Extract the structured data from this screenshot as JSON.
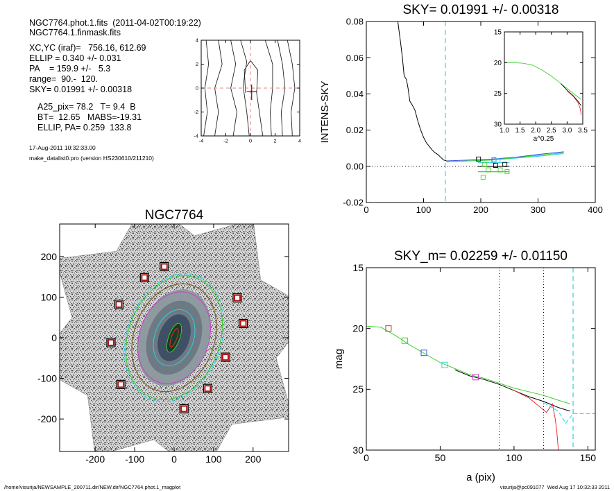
{
  "header": {
    "line1": "NGC7764.phot.1.fits  (2011-04-02T00:19:22)",
    "line2": "NGC7764.1.finmask.fits",
    "line3": "XC,YC (iraf)=   756.16, 612.69",
    "line4": "ELLIP = 0.340 +/- 0.031",
    "line5": "PA    = 159.9 +/-   5.3",
    "line6": "range=  90.-  120.",
    "line7": "SKY= 0.01991 +/- 0.00318",
    "line8": "A25_pix= 78.2   T= 9.4  B",
    "line9": "BT=  12.65   MABS=-19.31",
    "line10": "ELLIP, PA= 0.259  133.8",
    "date": "17-Aug-2011 10:32:33.00",
    "program": "make_datalist0.pro (version HS230610/211210)"
  },
  "footer": {
    "left": "/home/visurija/NEWSAMPLE_200711.dir/NEW.dir/NGC7764.phot.1_magplot",
    "right": "visurija@pc091077  Wed Aug 17 10:32:33 2011"
  },
  "colors": {
    "black": "#000000",
    "red": "#e8302e",
    "green": "#3fce2e",
    "blue": "#2f55d6",
    "cyan": "#29d3e6",
    "magenta": "#c83fc8",
    "pink": "#ee8080",
    "olive": "#786030"
  },
  "chart_data": [
    {
      "id": "contour",
      "type": "line",
      "title": "",
      "xlim": [
        -4,
        4
      ],
      "ylim": [
        -4,
        4
      ],
      "xticks": [
        "-4",
        "-2",
        "0",
        "2",
        "4"
      ],
      "yticks": [
        "-4",
        "-2",
        "0",
        "2",
        "4"
      ]
    },
    {
      "id": "sky",
      "type": "line",
      "title": "SKY= 0.01991 +/- 0.00318",
      "ylabel": "INTENS-SKY",
      "xlim": [
        0,
        400
      ],
      "ylim": [
        -0.02,
        0.08
      ],
      "xticks": [
        "0",
        "100",
        "200",
        "300",
        "400"
      ],
      "yticks": [
        "-0.02",
        "0.00",
        "0.02",
        "0.04",
        "0.06",
        "0.08"
      ],
      "cyan_marker_x": 138,
      "series": [
        {
          "color": "black",
          "x": [
            55,
            60,
            63,
            66,
            70,
            73,
            76,
            80,
            85,
            90,
            95,
            100,
            105,
            110,
            115,
            120,
            125,
            130,
            135,
            140
          ],
          "y": [
            0.08,
            0.068,
            0.06,
            0.05,
            0.048,
            0.043,
            0.036,
            0.034,
            0.031,
            0.025,
            0.02,
            0.016,
            0.013,
            0.011,
            0.009,
            0.0075,
            0.0065,
            0.005,
            0.0035,
            0.003
          ]
        },
        {
          "color": "cyan",
          "x": [
            140,
            180,
            220,
            260,
            300,
            345
          ],
          "y": [
            0.0025,
            0.003,
            0.0035,
            0.0045,
            0.0055,
            0.007
          ]
        },
        {
          "color": "blue",
          "x": [
            140,
            180,
            220,
            260,
            300,
            345
          ],
          "y": [
            0.003,
            0.0035,
            0.004,
            0.005,
            0.0065,
            0.008
          ]
        },
        {
          "color": "green",
          "x": [
            140,
            180,
            220,
            260,
            300,
            345
          ],
          "y": [
            0.0025,
            0.003,
            0.0035,
            0.0048,
            0.006,
            0.0075
          ]
        }
      ],
      "fit_lines": [
        {
          "color": "green",
          "x": [
            195,
            250
          ],
          "y": [
            -0.003,
            -0.003
          ]
        },
        {
          "color": "black",
          "x": [
            195,
            250
          ],
          "y": [
            0.0,
            0.0
          ]
        },
        {
          "color": "cyan",
          "x": [
            195,
            250
          ],
          "y": [
            0.002,
            0.002
          ]
        }
      ],
      "squares": [
        {
          "x": 196,
          "y": 0.004,
          "color": "black"
        },
        {
          "x": 204,
          "y": -0.006,
          "color": "green"
        },
        {
          "x": 207,
          "y": 0.001,
          "color": "green"
        },
        {
          "x": 213,
          "y": -0.002,
          "color": "green"
        },
        {
          "x": 223,
          "y": 0.0035,
          "color": "blue"
        },
        {
          "x": 226,
          "y": 0.0005,
          "color": "black"
        },
        {
          "x": 230,
          "y": 0.003,
          "color": "cyan"
        },
        {
          "x": 234,
          "y": -0.002,
          "color": "green"
        },
        {
          "x": 242,
          "y": 0.001,
          "color": "black"
        },
        {
          "x": 246,
          "y": -0.003,
          "color": "green"
        }
      ],
      "inset": {
        "xlim": [
          1.0,
          3.5
        ],
        "ylim": [
          15,
          30
        ],
        "xlabel": "a^0.25",
        "xticks": [
          "1.0",
          "1.5",
          "2.0",
          "2.5",
          "3.0",
          "3.5"
        ],
        "yticks": [
          "15",
          "20",
          "25",
          "30"
        ],
        "series": [
          {
            "color": "green",
            "x": [
              1.0,
              1.3,
              1.6,
              1.9,
              2.2,
              2.5,
              2.75,
              3.0,
              3.2,
              3.35,
              3.45
            ],
            "y": [
              20.0,
              20.0,
              20.1,
              20.4,
              21.2,
              22.2,
              23.2,
              24.2,
              25.0,
              25.6,
              26.0
            ]
          },
          {
            "color": "black",
            "x": [
              2.8,
              3.0,
              3.2,
              3.35,
              3.45
            ],
            "y": [
              23.4,
              24.5,
              25.4,
              26.3,
              27.0
            ]
          },
          {
            "color": "red",
            "x": [
              3.0,
              3.2,
              3.35,
              3.42,
              3.45
            ],
            "y": [
              24.6,
              25.5,
              26.5,
              27.5,
              28.5
            ]
          }
        ]
      }
    },
    {
      "id": "galaxy",
      "type": "scatter",
      "title": "NGC7764",
      "xlim": [
        -290,
        290
      ],
      "ylim": [
        -280,
        280
      ],
      "xticks": [
        "-200",
        "-100",
        "0",
        "100",
        "200"
      ],
      "yticks": [
        "-200",
        "-100",
        "0",
        "100",
        "200"
      ],
      "stars": [
        [
          -25,
          175
        ],
        [
          -75,
          148
        ],
        [
          -140,
          82
        ],
        [
          160,
          98
        ],
        [
          175,
          35
        ],
        [
          -160,
          -12
        ],
        [
          130,
          -48
        ],
        [
          -135,
          -115
        ],
        [
          85,
          -125
        ],
        [
          25,
          -175
        ]
      ]
    },
    {
      "id": "profile",
      "type": "line",
      "title": "SKY_m=  0.02259 +/- 0.01150",
      "xlabel": "a (pix)",
      "ylabel": "mag",
      "xlim": [
        0,
        155
      ],
      "ylim": [
        15,
        30
      ],
      "xticks": [
        "0",
        "50",
        "100",
        "150"
      ],
      "yticks": [
        "15",
        "20",
        "25",
        "30"
      ],
      "dotted_x": [
        90,
        120
      ],
      "cyan_marker_x": 140,
      "series": [
        {
          "color": "green",
          "x": [
            0,
            10,
            20,
            30,
            40,
            50,
            60,
            70,
            80,
            90,
            100,
            110,
            120,
            130,
            138
          ],
          "y": [
            19.8,
            19.9,
            20.6,
            21.4,
            22.1,
            22.8,
            23.3,
            23.8,
            24.1,
            24.5,
            24.9,
            25.2,
            25.5,
            25.9,
            26.2
          ]
        },
        {
          "color": "black",
          "x": [
            60,
            70,
            80,
            90,
            100,
            110,
            120,
            130,
            138
          ],
          "y": [
            23.4,
            23.9,
            24.2,
            24.6,
            25.1,
            25.6,
            26.0,
            26.5,
            26.8
          ]
        },
        {
          "color": "red",
          "x": [
            100,
            110,
            118,
            122,
            126,
            128,
            129,
            130
          ],
          "y": [
            25.1,
            25.7,
            26.5,
            26.9,
            26.2,
            27.5,
            28.5,
            30.0
          ]
        },
        {
          "color": "cyan",
          "x": [
            120,
            130,
            135,
            140,
            155
          ],
          "y": [
            26.1,
            26.8,
            27.8,
            27.0,
            27.0
          ]
        }
      ],
      "squares": [
        {
          "x": 15,
          "y": 20.0,
          "color": "red"
        },
        {
          "x": 26,
          "y": 21.0,
          "color": "green"
        },
        {
          "x": 39,
          "y": 22.0,
          "color": "blue"
        },
        {
          "x": 53,
          "y": 23.0,
          "color": "cyan"
        },
        {
          "x": 74,
          "y": 24.0,
          "color": "magenta"
        }
      ]
    }
  ]
}
